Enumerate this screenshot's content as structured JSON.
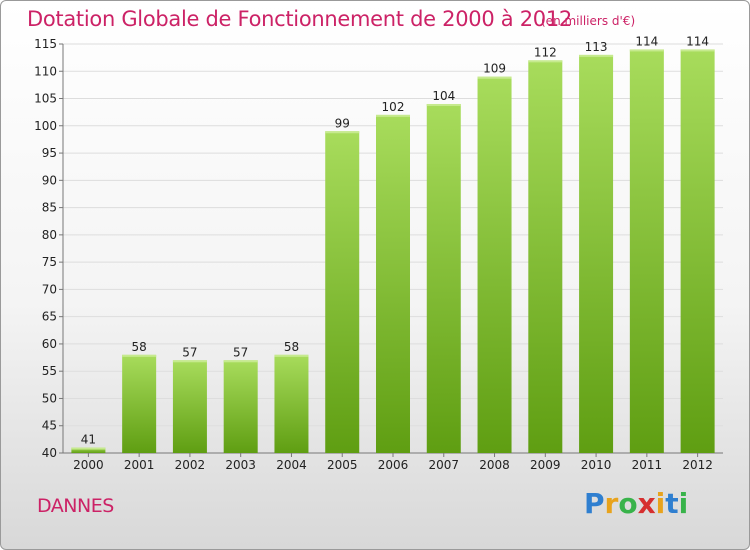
{
  "header": {
    "title": "Dotation Globale de Fonctionnement de 2000 à 2012",
    "subtitle": "(en milliers d'€)"
  },
  "footer": {
    "commune": "DANNES",
    "logo_text": "Proxiti"
  },
  "colors": {
    "title": "#cc2266",
    "bar_light": "#a8dc5c",
    "bar_dark": "#5f9e12",
    "grid": "#dddddd"
  },
  "chart_data": {
    "type": "bar",
    "title": "Dotation Globale de Fonctionnement de 2000 à 2012",
    "subtitle": "(en milliers d'€)",
    "xlabel": "",
    "ylabel": "",
    "categories": [
      "2000",
      "2001",
      "2002",
      "2003",
      "2004",
      "2005",
      "2006",
      "2007",
      "2008",
      "2009",
      "2010",
      "2011",
      "2012"
    ],
    "values": [
      41,
      58,
      57,
      57,
      58,
      99,
      102,
      104,
      109,
      112,
      113,
      114,
      114
    ],
    "ylim": [
      40,
      115
    ],
    "yticks": [
      40,
      45,
      50,
      55,
      60,
      65,
      70,
      75,
      80,
      85,
      90,
      95,
      100,
      105,
      110,
      115
    ],
    "grid": true,
    "legend": "none"
  }
}
